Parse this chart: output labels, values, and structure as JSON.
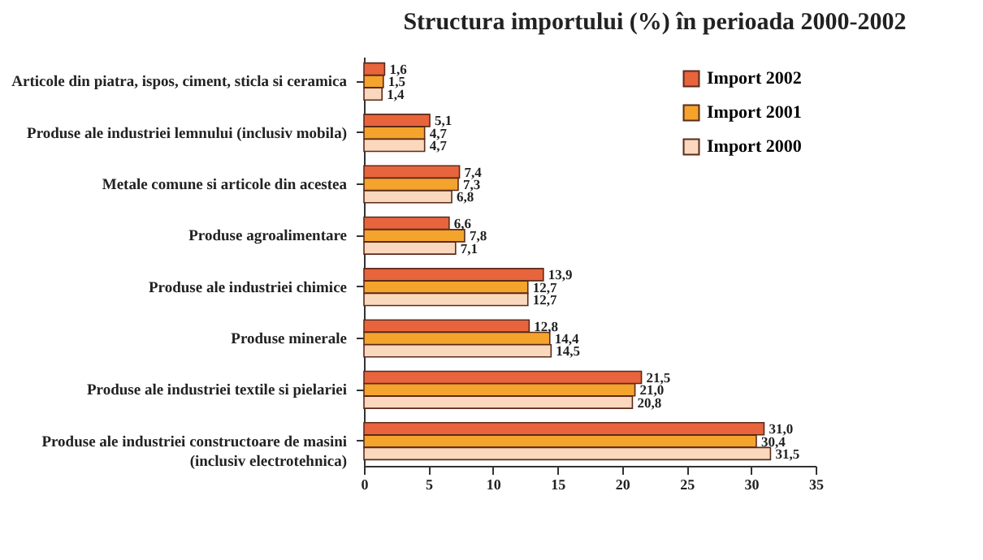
{
  "chart_data": {
    "type": "bar",
    "orientation": "horizontal",
    "title": "Structura importului (%) în perioada 2000-2002",
    "categories": [
      "Articole din piatra, ispos, ciment, sticla si ceramica",
      "Produse ale industriei lemnului (inclusiv mobila)",
      "Metale comune si articole din acestea",
      "Produse agroalimentare",
      "Produse ale industriei chimice",
      "Produse minerale",
      "Produse ale industriei textile si pielariei",
      "Produse ale industriei constructoare de masini (inclusiv electrotehnica)"
    ],
    "series": [
      {
        "name": "Import 2002",
        "color": "#e8643c",
        "values": [
          1.6,
          5.1,
          7.4,
          6.6,
          13.9,
          12.8,
          21.5,
          31.0
        ],
        "value_labels": [
          "1,6",
          "5,1",
          "7,4",
          "6,6",
          "13,9",
          "12,8",
          "21,5",
          "31,0"
        ]
      },
      {
        "name": "Import 2001",
        "color": "#f4a42c",
        "values": [
          1.5,
          4.7,
          7.3,
          7.8,
          12.7,
          14.4,
          21.0,
          30.4
        ],
        "value_labels": [
          "1,5",
          "4,7",
          "7,3",
          "7,8",
          "12,7",
          "14,4",
          "21,0",
          "30,4"
        ]
      },
      {
        "name": "Import 2000",
        "color": "#f9d8bd",
        "values": [
          1.4,
          4.7,
          6.8,
          7.1,
          12.7,
          14.5,
          20.8,
          31.5
        ],
        "value_labels": [
          "1,4",
          "4,7",
          "6,8",
          "7,1",
          "12,7",
          "14,5",
          "20,8",
          "31,5"
        ]
      }
    ],
    "xlim": [
      0,
      35
    ],
    "xticks": [
      0,
      5,
      10,
      15,
      20,
      25,
      30,
      35
    ],
    "grid": false,
    "legend": "top right"
  }
}
